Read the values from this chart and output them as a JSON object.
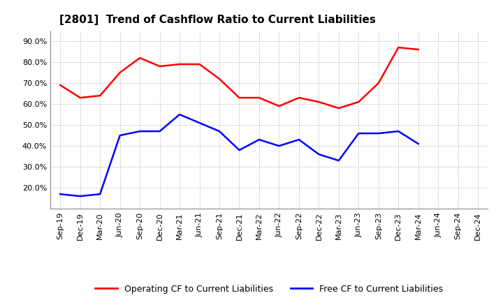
{
  "title": "[2801]  Trend of Cashflow Ratio to Current Liabilities",
  "x_labels": [
    "Sep-19",
    "Dec-19",
    "Mar-20",
    "Jun-20",
    "Sep-20",
    "Dec-20",
    "Mar-21",
    "Jun-21",
    "Sep-21",
    "Dec-21",
    "Mar-22",
    "Jun-22",
    "Sep-22",
    "Dec-22",
    "Mar-23",
    "Jun-23",
    "Sep-23",
    "Dec-23",
    "Mar-24",
    "Jun-24",
    "Sep-24",
    "Dec-24"
  ],
  "operating_cf": [
    0.69,
    0.63,
    0.64,
    0.75,
    0.82,
    0.78,
    0.79,
    0.79,
    0.72,
    0.63,
    0.63,
    0.59,
    0.63,
    0.61,
    0.58,
    0.61,
    0.7,
    0.87,
    0.86,
    null,
    null,
    null
  ],
  "free_cf": [
    0.17,
    0.16,
    0.17,
    0.45,
    0.47,
    0.47,
    0.55,
    0.51,
    0.47,
    0.38,
    0.43,
    0.4,
    0.43,
    0.36,
    0.33,
    0.46,
    0.46,
    0.47,
    0.41,
    null,
    null,
    null
  ],
  "operating_color": "#ff0000",
  "free_color": "#0000ff",
  "ylim": [
    0.1,
    0.95
  ],
  "ytick_values": [
    0.2,
    0.3,
    0.4,
    0.5,
    0.6,
    0.7,
    0.8,
    0.9
  ],
  "ytick_labels": [
    "20.0%",
    "30.0%",
    "40.0%",
    "50.0%",
    "60.0%",
    "70.0%",
    "80.0%",
    "90.0%"
  ],
  "background_color": "#ffffff",
  "grid_color": "#aaaaaa",
  "legend_labels": [
    "Operating CF to Current Liabilities",
    "Free CF to Current Liabilities"
  ],
  "title_fontsize": 11,
  "tick_fontsize": 8,
  "legend_fontsize": 9,
  "linewidth": 1.8
}
